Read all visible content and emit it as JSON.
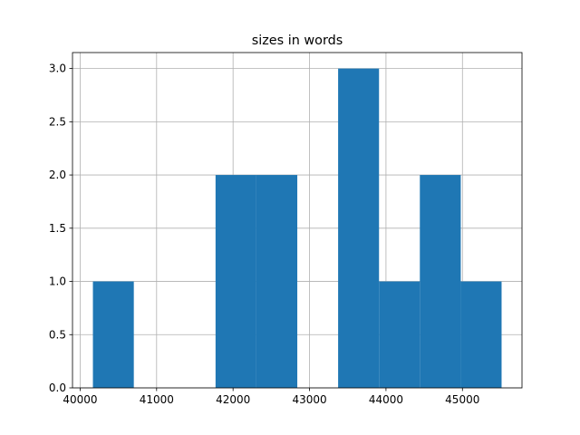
{
  "chart_data": {
    "type": "histogram",
    "title": "sizes in words",
    "bins": [
      40167,
      40702,
      41236,
      41771,
      42305,
      42840,
      43374,
      43909,
      44443,
      44978,
      45512
    ],
    "values": [
      1,
      0,
      0,
      2,
      2,
      0,
      3,
      1,
      2,
      1
    ],
    "color": "#1f77b4",
    "xlim": [
      39900,
      45779
    ],
    "xticks": [
      40000,
      41000,
      42000,
      43000,
      44000,
      45000
    ],
    "ylim": [
      0,
      3.15
    ],
    "yticks": [
      {
        "value": 0,
        "label": "0.0"
      },
      {
        "value": 0.5,
        "label": "0.5"
      },
      {
        "value": 1,
        "label": "1.0"
      },
      {
        "value": 1.5,
        "label": "1.5"
      },
      {
        "value": 2,
        "label": "2.0"
      },
      {
        "value": 2.5,
        "label": "2.5"
      },
      {
        "value": 3,
        "label": "3.0"
      }
    ],
    "grid": true
  }
}
